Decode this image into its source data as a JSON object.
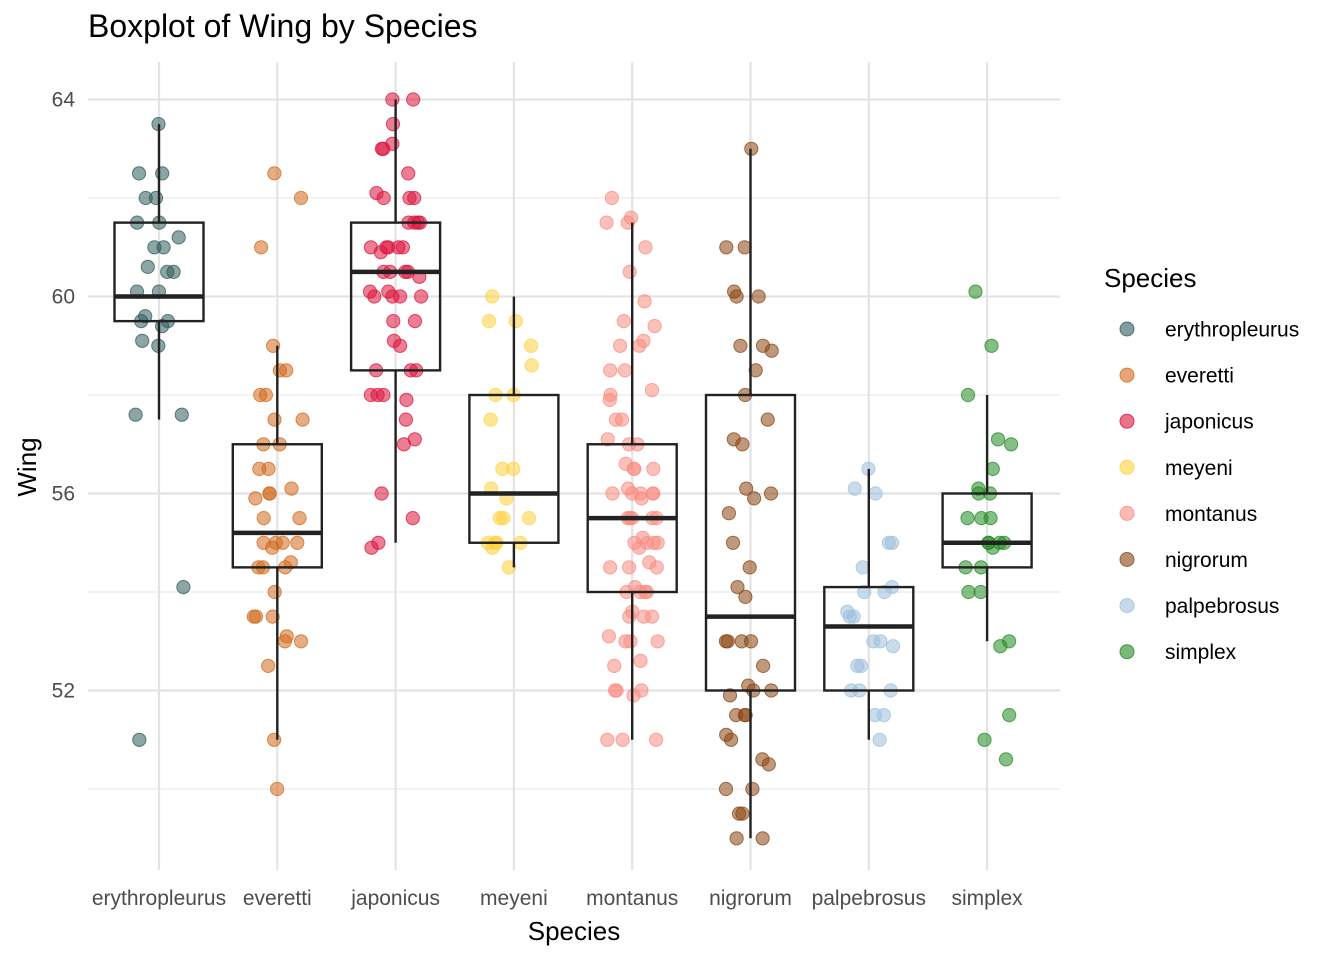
{
  "chart_data": {
    "type": "boxplot",
    "title": "Boxplot of Wing by Species",
    "xlabel": "Species",
    "ylabel": "Wing",
    "ylim": [
      48.4,
      64.8
    ],
    "yticks": [
      52,
      56,
      60,
      64
    ],
    "grid": true,
    "legend": {
      "title": "Species",
      "position": "right"
    },
    "categories": [
      "erythropleurus",
      "everetti",
      "japonicus",
      "meyeni",
      "montanus",
      "nigrorum",
      "palpebrosus",
      "simplex"
    ],
    "colors": {
      "erythropleurus": "#2F5B5B",
      "everetti": "#D2691E",
      "japonicus": "#DC143C",
      "meyeni": "#FFD23F",
      "montanus": "#FA8C83",
      "nigrorum": "#8B4513",
      "palpebrosus": "#9EC0DC",
      "simplex": "#228B22"
    },
    "boxes": [
      {
        "name": "erythropleurus",
        "whisker_low": 57.5,
        "q1": 59.5,
        "median": 60.0,
        "q3": 61.5,
        "whisker_high": 63.5
      },
      {
        "name": "everetti",
        "whisker_low": 51.0,
        "q1": 54.5,
        "median": 55.2,
        "q3": 57.0,
        "whisker_high": 59.0
      },
      {
        "name": "japonicus",
        "whisker_low": 55.0,
        "q1": 58.5,
        "median": 60.5,
        "q3": 61.5,
        "whisker_high": 64.0
      },
      {
        "name": "meyeni",
        "whisker_low": 54.5,
        "q1": 55.0,
        "median": 56.0,
        "q3": 58.0,
        "whisker_high": 60.0
      },
      {
        "name": "montanus",
        "whisker_low": 51.0,
        "q1": 54.0,
        "median": 55.5,
        "q3": 57.0,
        "whisker_high": 61.5
      },
      {
        "name": "nigrorum",
        "whisker_low": 49.0,
        "q1": 52.0,
        "median": 53.5,
        "q3": 58.0,
        "whisker_high": 63.0
      },
      {
        "name": "palpebrosus",
        "whisker_low": 51.0,
        "q1": 52.0,
        "median": 53.3,
        "q3": 54.1,
        "whisker_high": 56.5
      },
      {
        "name": "simplex",
        "whisker_low": 53.0,
        "q1": 54.5,
        "median": 55.0,
        "q3": 56.0,
        "whisker_high": 58.0
      }
    ],
    "points": {
      "erythropleurus": [
        63.5,
        62.5,
        62.5,
        62.0,
        62.0,
        61.5,
        61.5,
        61.2,
        61.0,
        61.0,
        60.6,
        60.5,
        60.5,
        60.1,
        60.1,
        59.6,
        59.5,
        59.5,
        59.4,
        59.0,
        59.1,
        57.6,
        57.6,
        54.1,
        51.0
      ],
      "everetti": [
        62.5,
        62.0,
        61.0,
        59.0,
        58.5,
        58.5,
        58.0,
        58.0,
        57.5,
        57.5,
        57.0,
        57.0,
        56.5,
        56.5,
        56.1,
        56.0,
        56.0,
        55.9,
        55.5,
        55.5,
        55.0,
        55.0,
        55.0,
        55.0,
        54.9,
        54.6,
        54.5,
        54.5,
        54.5,
        54.0,
        53.5,
        53.5,
        53.5,
        53.1,
        53.0,
        53.0,
        52.5,
        51.0,
        50.0
      ],
      "japonicus": [
        64.0,
        64.0,
        63.5,
        63.1,
        63.0,
        63.0,
        62.5,
        62.1,
        62.0,
        62.0,
        62.0,
        61.5,
        61.5,
        61.5,
        61.5,
        61.0,
        61.0,
        61.0,
        61.0,
        61.0,
        60.9,
        60.5,
        60.5,
        60.5,
        60.5,
        60.4,
        60.1,
        60.1,
        60.0,
        60.0,
        60.0,
        60.0,
        59.5,
        59.5,
        59.0,
        59.1,
        58.5,
        58.5,
        58.5,
        58.0,
        58.0,
        58.0,
        57.9,
        57.5,
        57.0,
        57.1,
        56.0,
        55.5,
        55.0,
        54.9
      ],
      "meyeni": [
        60.0,
        59.5,
        59.5,
        59.0,
        58.6,
        58.0,
        58.0,
        57.5,
        56.5,
        56.5,
        56.1,
        55.9,
        55.5,
        55.5,
        55.5,
        55.0,
        55.0,
        55.0,
        55.0,
        54.9,
        54.5
      ],
      "montanus": [
        62.0,
        61.6,
        61.5,
        61.5,
        61.0,
        60.5,
        59.9,
        59.5,
        59.4,
        59.1,
        59.0,
        59.0,
        58.5,
        58.5,
        58.1,
        58.0,
        57.9,
        57.5,
        57.5,
        57.1,
        57.0,
        57.0,
        56.6,
        56.5,
        56.5,
        56.5,
        56.1,
        56.0,
        56.0,
        56.0,
        56.0,
        56.0,
        55.9,
        55.5,
        55.5,
        55.5,
        55.5,
        55.5,
        55.1,
        55.0,
        55.0,
        55.0,
        55.0,
        54.9,
        54.6,
        54.5,
        54.5,
        54.5,
        54.1,
        54.0,
        54.0,
        54.0,
        54.0,
        53.6,
        53.5,
        53.5,
        53.5,
        53.1,
        53.0,
        53.0,
        53.0,
        52.6,
        52.5,
        52.0,
        52.0,
        52.0,
        51.9,
        51.0,
        51.0,
        51.0
      ],
      "nigrorum": [
        63.0,
        61.0,
        61.0,
        60.1,
        60.0,
        60.0,
        59.0,
        59.0,
        58.9,
        58.5,
        58.0,
        57.5,
        57.1,
        57.0,
        56.1,
        56.0,
        55.9,
        55.6,
        55.0,
        54.5,
        54.1,
        53.9,
        53.0,
        53.0,
        53.0,
        53.0,
        52.5,
        52.1,
        52.0,
        52.0,
        51.9,
        51.5,
        51.5,
        51.5,
        51.1,
        51.0,
        50.6,
        50.5,
        50.0,
        50.0,
        49.5,
        49.5,
        49.0,
        49.0
      ],
      "palpebrosus": [
        56.5,
        56.1,
        56.0,
        55.0,
        55.0,
        54.5,
        54.1,
        54.0,
        54.0,
        53.6,
        53.5,
        53.5,
        53.0,
        53.0,
        52.9,
        52.5,
        52.5,
        52.0,
        52.0,
        52.0,
        51.5,
        51.5,
        51.0
      ],
      "simplex": [
        60.1,
        59.0,
        58.0,
        57.1,
        57.0,
        56.5,
        56.1,
        56.0,
        56.0,
        55.5,
        55.5,
        55.5,
        55.0,
        55.0,
        55.0,
        55.0,
        54.9,
        54.5,
        54.5,
        54.0,
        54.0,
        53.0,
        52.9,
        51.5,
        51.0,
        50.6
      ]
    }
  }
}
